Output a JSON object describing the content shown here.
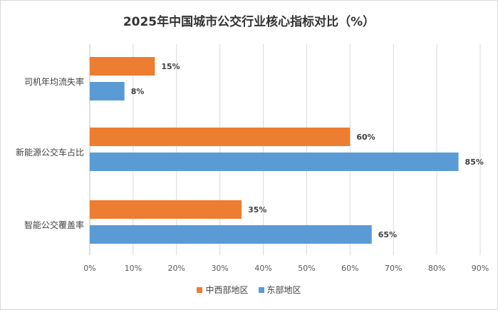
{
  "chart_data": {
    "type": "bar",
    "orientation": "horizontal",
    "title": "2025年中国城市公交行业核心指标对比（%）",
    "categories": [
      "司机年均流失率",
      "新能源公交车占比",
      "智能公交覆盖率"
    ],
    "series": [
      {
        "name": "中西部地区",
        "color": "#ED7D31",
        "values": [
          15,
          60,
          35
        ]
      },
      {
        "name": "东部地区",
        "color": "#5B9BD5",
        "values": [
          8,
          85,
          65
        ]
      }
    ],
    "x_ticks": [
      "0%",
      "10%",
      "20%",
      "30%",
      "40%",
      "50%",
      "60%",
      "70%",
      "80%",
      "90%"
    ],
    "xlim": [
      0,
      90
    ],
    "grid": true,
    "legend_position": "bottom"
  }
}
